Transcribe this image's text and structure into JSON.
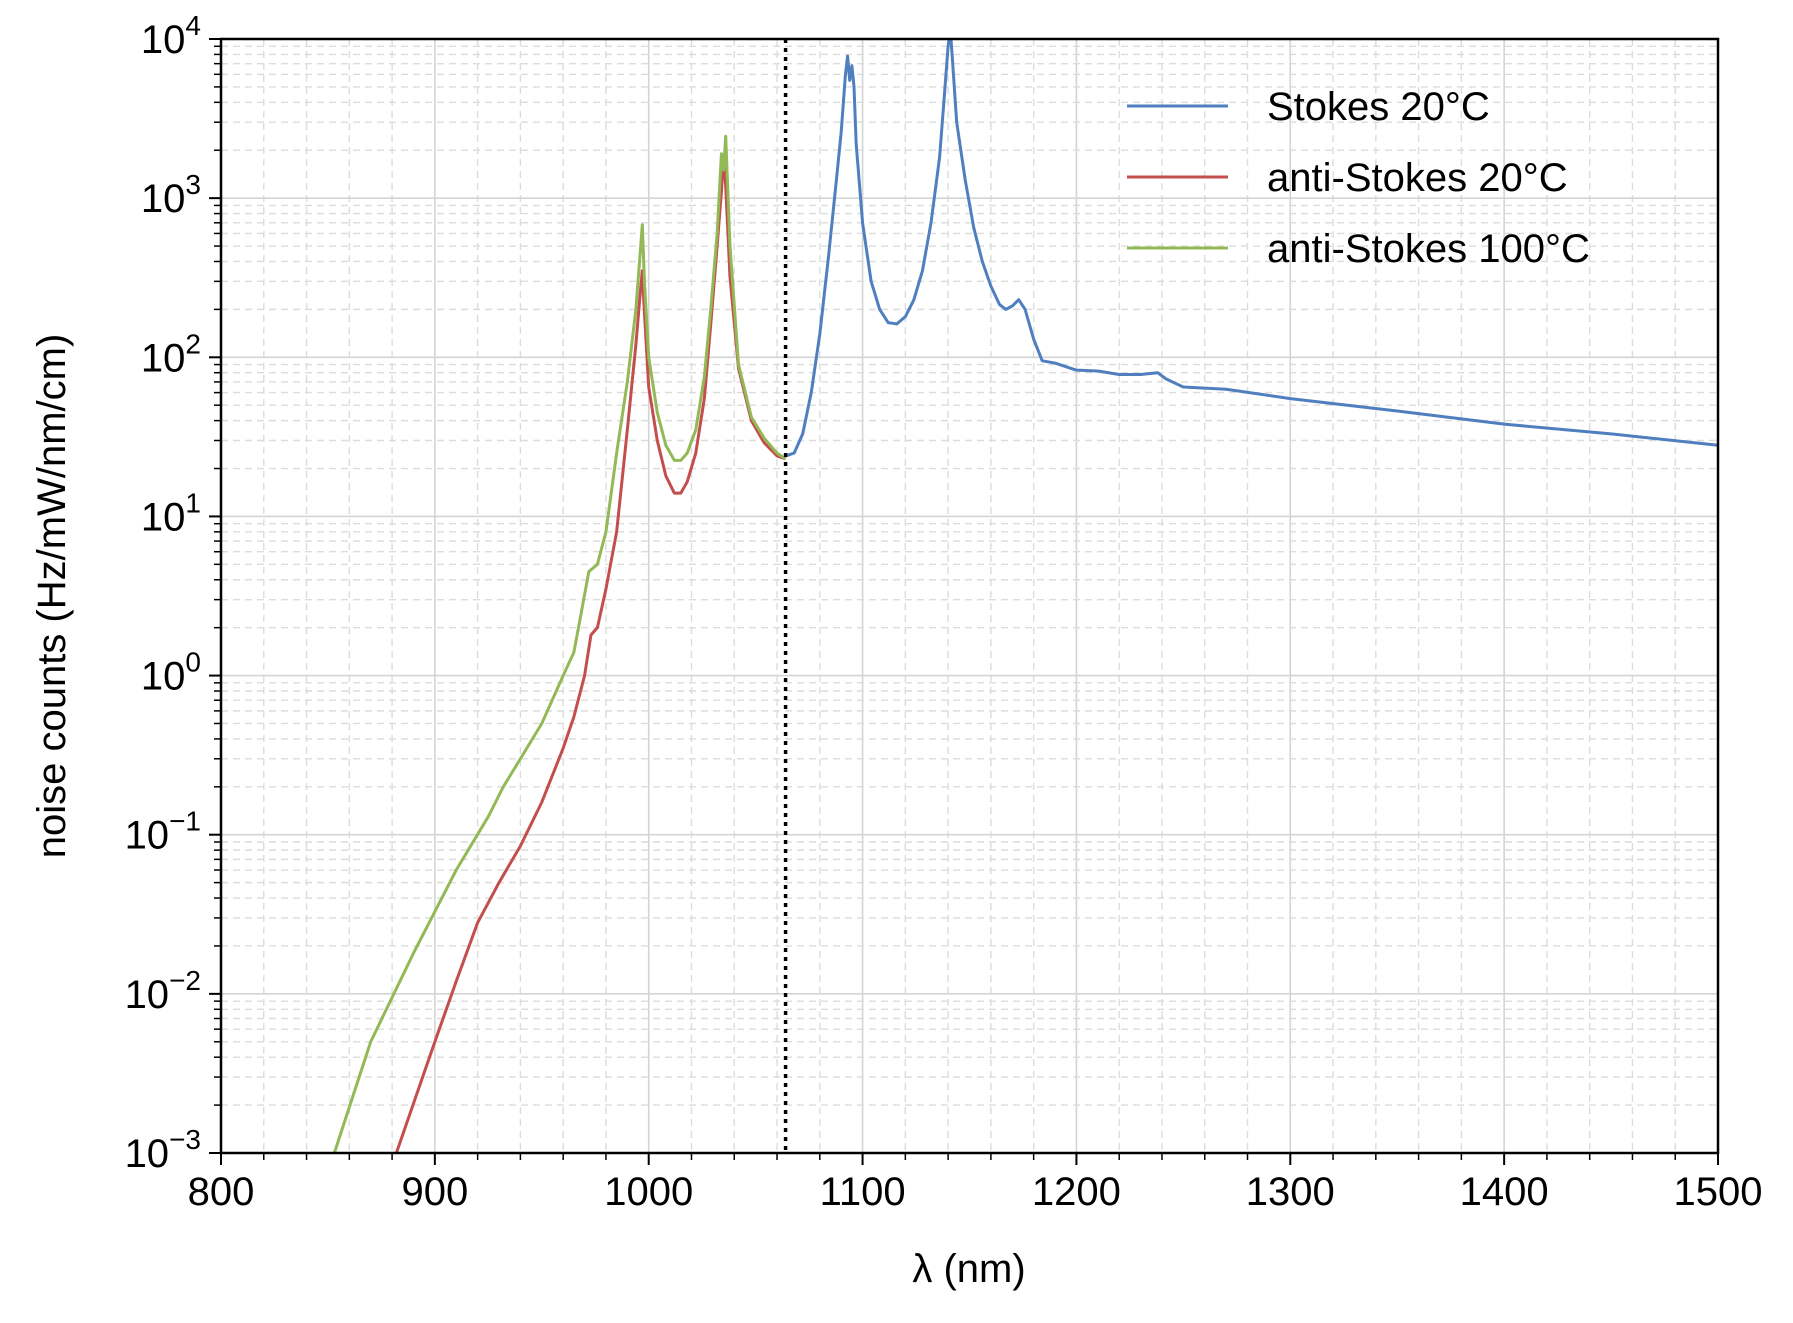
{
  "chart_data": {
    "type": "line",
    "title": "",
    "xlabel": "λ (nm)",
    "ylabel": "noise counts (Hz/mW/nm/cm)",
    "xlim": [
      800,
      1500
    ],
    "ylim": [
      0.001,
      10000
    ],
    "yscale": "log",
    "grid": true,
    "legend_position": "top-right",
    "x_ticks": [
      "800",
      "900",
      "1000",
      "1100",
      "1200",
      "1300",
      "1400",
      "1500"
    ],
    "y_ticks": [
      {
        "base": "10",
        "exp": "−3"
      },
      {
        "base": "10",
        "exp": "−2"
      },
      {
        "base": "10",
        "exp": "−1"
      },
      {
        "base": "10",
        "exp": "0"
      },
      {
        "base": "10",
        "exp": "1"
      },
      {
        "base": "10",
        "exp": "2"
      },
      {
        "base": "10",
        "exp": "3"
      },
      {
        "base": "10",
        "exp": "4"
      }
    ],
    "vline_x": 1064,
    "series": [
      {
        "name": "Stokes 20°C",
        "color": "#4f7fbf",
        "points": [
          [
            1064,
            24
          ],
          [
            1068,
            25
          ],
          [
            1072,
            33
          ],
          [
            1076,
            60
          ],
          [
            1080,
            140
          ],
          [
            1084,
            420
          ],
          [
            1088,
            1400
          ],
          [
            1090,
            2600
          ],
          [
            1092,
            6000
          ],
          [
            1093,
            7800
          ],
          [
            1094,
            5500
          ],
          [
            1095,
            6800
          ],
          [
            1096,
            5000
          ],
          [
            1097,
            2200
          ],
          [
            1100,
            700
          ],
          [
            1104,
            300
          ],
          [
            1108,
            200
          ],
          [
            1112,
            165
          ],
          [
            1116,
            162
          ],
          [
            1120,
            180
          ],
          [
            1124,
            230
          ],
          [
            1128,
            350
          ],
          [
            1132,
            700
          ],
          [
            1136,
            1800
          ],
          [
            1138,
            4000
          ],
          [
            1140,
            9000
          ],
          [
            1141,
            11500
          ],
          [
            1142,
            7500
          ],
          [
            1144,
            3000
          ],
          [
            1148,
            1300
          ],
          [
            1152,
            650
          ],
          [
            1156,
            400
          ],
          [
            1160,
            280
          ],
          [
            1164,
            215
          ],
          [
            1167,
            200
          ],
          [
            1170,
            210
          ],
          [
            1173,
            230
          ],
          [
            1176,
            200
          ],
          [
            1180,
            130
          ],
          [
            1184,
            95
          ],
          [
            1190,
            92
          ],
          [
            1200,
            83
          ],
          [
            1210,
            82
          ],
          [
            1220,
            78
          ],
          [
            1230,
            78
          ],
          [
            1238,
            80
          ],
          [
            1242,
            73
          ],
          [
            1250,
            65
          ],
          [
            1270,
            63
          ],
          [
            1300,
            55
          ],
          [
            1350,
            46
          ],
          [
            1400,
            38
          ],
          [
            1450,
            33
          ],
          [
            1500,
            28
          ]
        ]
      },
      {
        "name": "anti-Stokes 20°C",
        "color": "#c44e4e",
        "points": [
          [
            882,
            0.001
          ],
          [
            900,
            0.005
          ],
          [
            910,
            0.012
          ],
          [
            920,
            0.028
          ],
          [
            930,
            0.05
          ],
          [
            940,
            0.085
          ],
          [
            950,
            0.16
          ],
          [
            960,
            0.35
          ],
          [
            965,
            0.55
          ],
          [
            970,
            1.0
          ],
          [
            973,
            1.8
          ],
          [
            976,
            2.0
          ],
          [
            980,
            3.5
          ],
          [
            985,
            8
          ],
          [
            990,
            35
          ],
          [
            994,
            120
          ],
          [
            996,
            250
          ],
          [
            997,
            350
          ],
          [
            998,
            190
          ],
          [
            1000,
            65
          ],
          [
            1004,
            30
          ],
          [
            1008,
            18
          ],
          [
            1012,
            14
          ],
          [
            1015,
            14
          ],
          [
            1018,
            16.5
          ],
          [
            1022,
            25
          ],
          [
            1026,
            55
          ],
          [
            1029,
            160
          ],
          [
            1032,
            500
          ],
          [
            1034,
            1100
          ],
          [
            1035,
            1800
          ],
          [
            1036,
            1200
          ],
          [
            1038,
            320
          ],
          [
            1042,
            85
          ],
          [
            1048,
            40
          ],
          [
            1054,
            29
          ],
          [
            1060,
            24
          ],
          [
            1064,
            23
          ]
        ]
      },
      {
        "name": "anti-Stokes 100°C",
        "color": "#93b956",
        "points": [
          [
            853,
            0.001
          ],
          [
            870,
            0.005
          ],
          [
            890,
            0.018
          ],
          [
            910,
            0.06
          ],
          [
            925,
            0.13
          ],
          [
            932,
            0.2
          ],
          [
            940,
            0.3
          ],
          [
            950,
            0.5
          ],
          [
            960,
            1.0
          ],
          [
            965,
            1.4
          ],
          [
            968,
            2.3
          ],
          [
            972,
            4.5
          ],
          [
            976,
            5.0
          ],
          [
            980,
            8
          ],
          [
            985,
            25
          ],
          [
            990,
            70
          ],
          [
            994,
            200
          ],
          [
            996,
            450
          ],
          [
            997,
            680
          ],
          [
            998,
            300
          ],
          [
            1000,
            100
          ],
          [
            1004,
            45
          ],
          [
            1008,
            28
          ],
          [
            1012,
            22.5
          ],
          [
            1015,
            22.5
          ],
          [
            1018,
            25
          ],
          [
            1022,
            35
          ],
          [
            1026,
            75
          ],
          [
            1029,
            200
          ],
          [
            1032,
            600
          ],
          [
            1034,
            1900
          ],
          [
            1035,
            1500
          ],
          [
            1036,
            2450
          ],
          [
            1038,
            500
          ],
          [
            1042,
            90
          ],
          [
            1048,
            42
          ],
          [
            1054,
            31
          ],
          [
            1060,
            25
          ],
          [
            1064,
            23
          ]
        ]
      }
    ]
  }
}
